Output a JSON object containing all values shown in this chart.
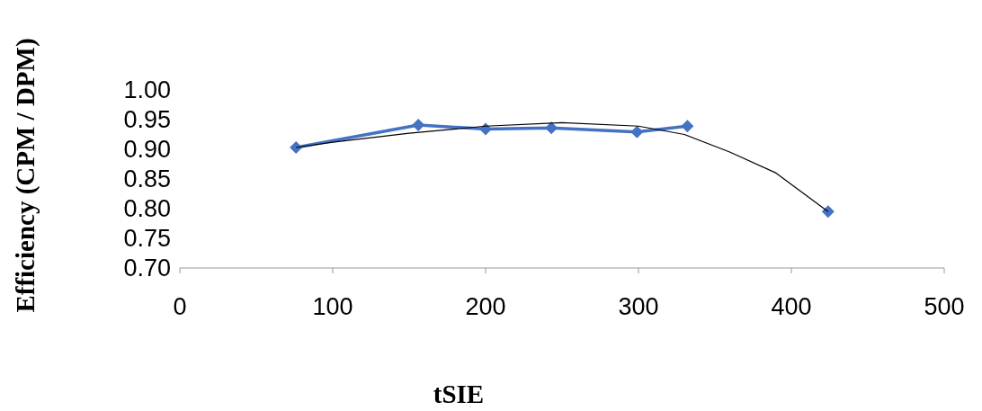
{
  "chart_data": {
    "type": "line",
    "xlabel": "tSIE",
    "ylabel": "Efficiency (CPM / DPM)",
    "xlim": [
      0,
      500
    ],
    "xticks": [
      0,
      100,
      200,
      300,
      400,
      500
    ],
    "ylim": [
      0.7,
      1.0
    ],
    "yticks": [
      {
        "value": 0.7,
        "label": "0.70"
      },
      {
        "value": 0.75,
        "label": "0.75"
      },
      {
        "value": 0.8,
        "label": "0.80"
      },
      {
        "value": 0.85,
        "label": "0.85"
      },
      {
        "value": 0.9,
        "label": "0.90"
      },
      {
        "value": 0.95,
        "label": "0.95"
      },
      {
        "value": 1.0,
        "label": "1.00"
      }
    ],
    "grid": false,
    "marker": "diamond",
    "line_style": "solid",
    "series": [
      {
        "color": "#4472c4",
        "x": [
          76,
          156,
          200,
          243,
          299,
          332
        ],
        "values": [
          0.903,
          0.941,
          0.934,
          0.936,
          0.929,
          0.939
        ]
      },
      {
        "type": "scatter",
        "color": "#4472c4",
        "x": [
          424
        ],
        "values": [
          0.795
        ]
      },
      {
        "type": "line",
        "color": "#000000",
        "marker": "none",
        "x": [
          76,
          100,
          150,
          200,
          250,
          300,
          330,
          360,
          390,
          424
        ],
        "values": [
          0.903,
          0.912,
          0.927,
          0.939,
          0.945,
          0.939,
          0.925,
          0.895,
          0.86,
          0.795
        ]
      }
    ]
  }
}
